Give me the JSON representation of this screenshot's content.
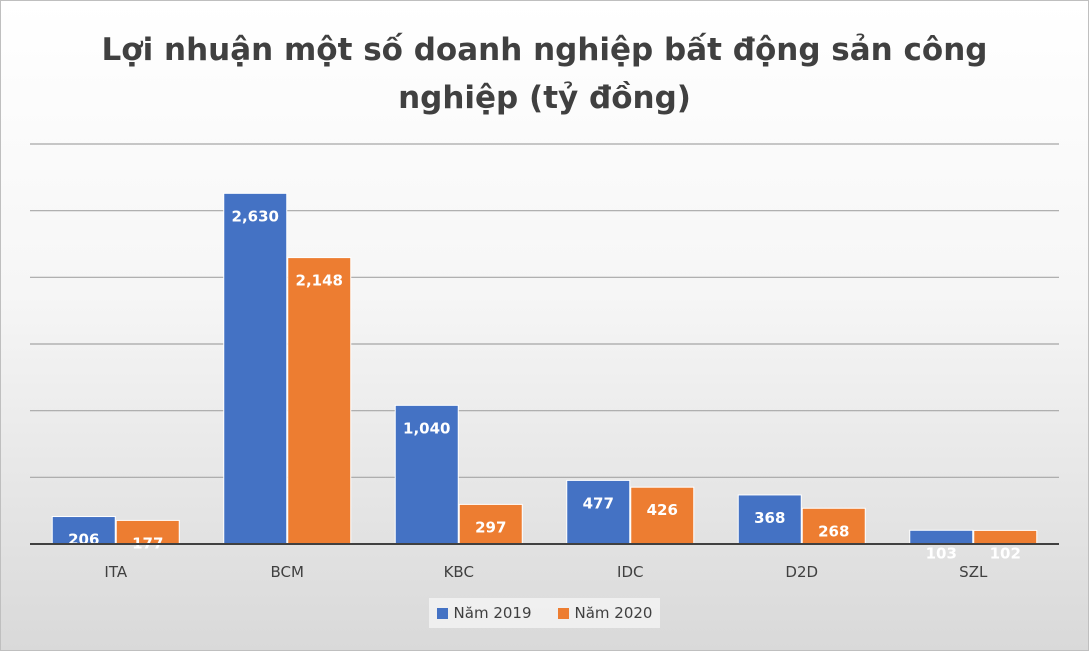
{
  "chart_data": {
    "type": "bar",
    "title_line1": "Lợi nhuận một số doanh nghiệp bất động sản công",
    "title_line2": "nghiệp (tỷ đồng)",
    "categories": [
      "ITA",
      "BCM",
      "KBC",
      "IDC",
      "D2D",
      "SZL"
    ],
    "series": [
      {
        "name": "Năm 2019",
        "color": "#4472C4",
        "values": [
          206,
          2630,
          1040,
          477,
          368,
          103
        ],
        "labels": [
          "206",
          "2,630",
          "1,040",
          "477",
          "368",
          "103"
        ]
      },
      {
        "name": "Năm 2020",
        "color": "#ED7D31",
        "values": [
          177,
          2148,
          297,
          426,
          268,
          102
        ],
        "labels": [
          "177",
          "2,148",
          "297",
          "426",
          "268",
          "102"
        ]
      }
    ],
    "ylim": [
      0,
      3000
    ],
    "y_gridline_step": 500,
    "grid": true,
    "legend_position": "bottom"
  }
}
